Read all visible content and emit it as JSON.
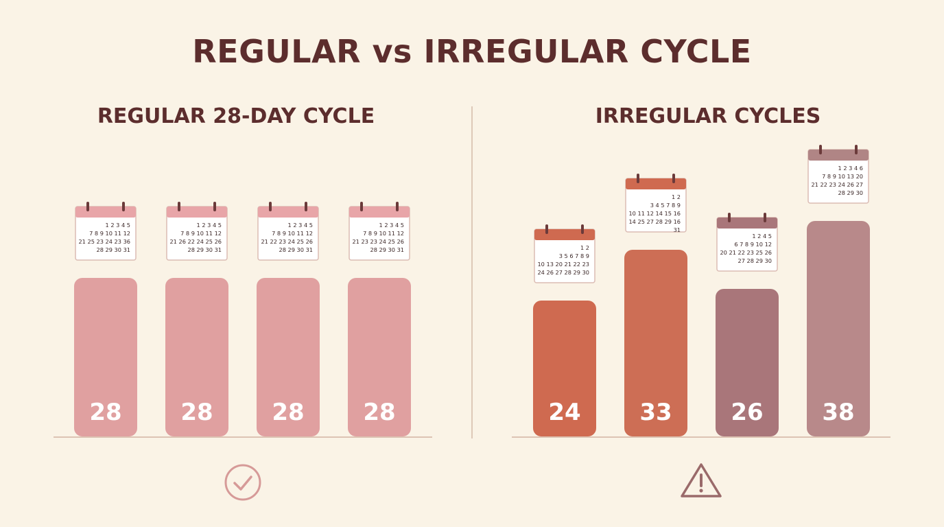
{
  "title": "REGULAR vs IRREGULAR CYCLE",
  "panels": {
    "regular": {
      "title": "REGULAR 28-DAY CYCLE",
      "status_icon": "checkmark-circle-icon"
    },
    "irregular": {
      "title": "IRREGULAR CYCLES",
      "status_icon": "warning-triangle-icon"
    }
  },
  "chart_data": [
    {
      "type": "bar",
      "title": "REGULAR 28-DAY CYCLE",
      "values": [
        28,
        28,
        28,
        28
      ],
      "ylim": [
        0,
        40
      ],
      "colors": [
        "#e0a0a0",
        "#e0a0a0",
        "#e0a0a0",
        "#e0a0a0"
      ],
      "calendar_header_colors": [
        "#e8a5a8",
        "#e8a5a8",
        "#e8a5a8",
        "#e8a5a8"
      ],
      "calendars": [
        [
          "1 2 3 4 5",
          "7 8 9 10 11 12",
          "21 25 23 24 23 36",
          "28 29 30 31"
        ],
        [
          "1 2 3 4 5",
          "7 8 9 10 11 12",
          "21 26 22 24 25 26",
          "28 29 30 31"
        ],
        [
          "1 2 3 4 5",
          "7 8 9 10 11 12",
          "21 22 23 24 25 26",
          "28 29 30 31"
        ],
        [
          "1 2 3 4 5",
          "7 8 9 10 11 12",
          "21 23 23 24 25 26",
          "28 29 30 31"
        ]
      ]
    },
    {
      "type": "bar",
      "title": "IRREGULAR CYCLES",
      "values": [
        24,
        33,
        26,
        38
      ],
      "ylim": [
        0,
        40
      ],
      "colors": [
        "#cf6a50",
        "#cd6e55",
        "#a9767a",
        "#b8898a"
      ],
      "calendar_header_colors": [
        "#cf6a50",
        "#cf6a50",
        "#a9767a",
        "#b08585"
      ],
      "calendars": [
        [
          "1 2",
          "3 5 6 7 8 9",
          "10 13 20 21 22 23",
          "24 26 27 28 29 30"
        ],
        [
          "1 2",
          "3 4 5 7 8 9",
          "10 11 12 14 15 16",
          "14 25 27 28 29 16",
          "31"
        ],
        [
          "1 2 4 5",
          "6 7 8 9 10 12",
          "20 21 22 23 25 26",
          "27 28 29 30"
        ],
        [
          "1 2 3 4 6",
          "7 8 9 10 13 20",
          "21 22 23 24 26 27",
          "28 29 30"
        ]
      ]
    }
  ]
}
